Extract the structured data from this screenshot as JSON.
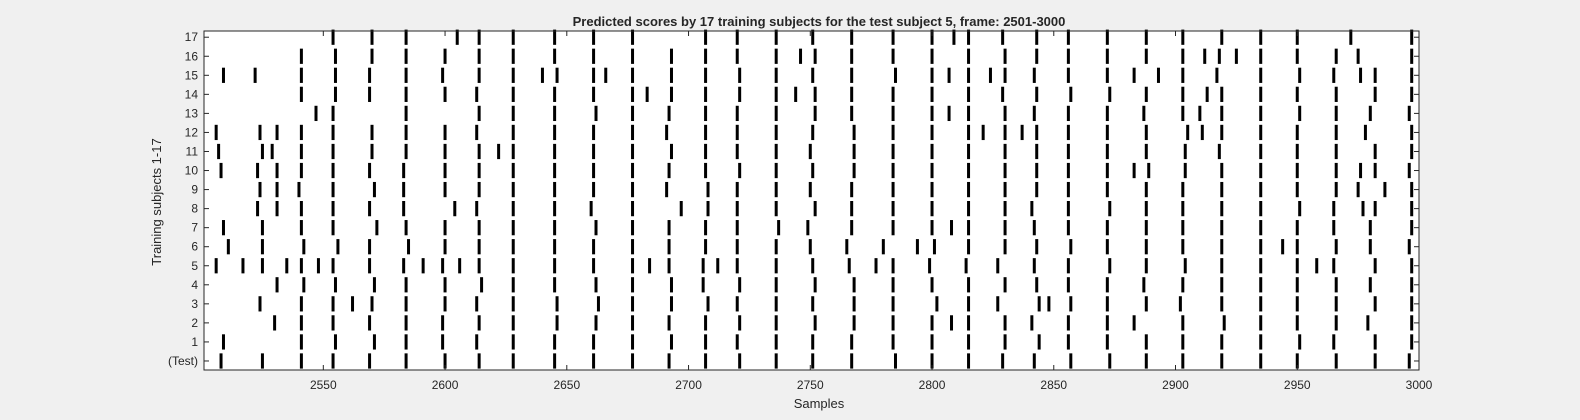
{
  "chart_data": {
    "type": "raster",
    "title": "Predicted scores by 17 training subjects for the test subject 5, frame: 2501-3000",
    "xlabel": "Samples",
    "ylabel": "Training subjects 1-17",
    "xlim": [
      2501,
      3000
    ],
    "xticks": [
      2550,
      2600,
      2650,
      2700,
      2750,
      2800,
      2850,
      2900,
      2950,
      3000
    ],
    "ytick_labels": [
      "(Test)",
      "1",
      "2",
      "3",
      "4",
      "5",
      "6",
      "7",
      "8",
      "9",
      "10",
      "11",
      "12",
      "13",
      "14",
      "15",
      "16",
      "17"
    ],
    "rows": [
      {
        "label": "(Test)",
        "events": [
          2508,
          2525,
          2541,
          2554,
          2569,
          2584,
          2600,
          2614,
          2628,
          2645,
          2661,
          2677,
          2692,
          2707,
          2721,
          2736,
          2751,
          2767,
          2785,
          2800,
          2815,
          2829,
          2842,
          2857,
          2873,
          2888,
          2903,
          2919,
          2935,
          2950,
          2966,
          2982,
          2996
        ]
      },
      {
        "label": "1",
        "events": [
          2509,
          2541,
          2555,
          2571,
          2584,
          2599,
          2613,
          2628,
          2645,
          2661,
          2677,
          2693,
          2707,
          2720,
          2736,
          2751,
          2767,
          2784,
          2800,
          2815,
          2830,
          2844,
          2856,
          2872,
          2888,
          2903,
          2919,
          2935,
          2951,
          2965,
          2982,
          2997
        ]
      },
      {
        "label": "2",
        "events": [
          2530,
          2541,
          2554,
          2569,
          2584,
          2599,
          2614,
          2628,
          2646,
          2662,
          2677,
          2692,
          2707,
          2721,
          2736,
          2752,
          2768,
          2784,
          2800,
          2808,
          2815,
          2830,
          2841,
          2856,
          2872,
          2883,
          2903,
          2920,
          2935,
          2950,
          2966,
          2979,
          2997
        ]
      },
      {
        "label": "3",
        "events": [
          2524,
          2541,
          2554,
          2562,
          2570,
          2584,
          2600,
          2613,
          2628,
          2646,
          2663,
          2677,
          2693,
          2708,
          2720,
          2736,
          2751,
          2768,
          2784,
          2802,
          2815,
          2827,
          2844,
          2848,
          2857,
          2872,
          2888,
          2902,
          2919,
          2935,
          2950,
          2966,
          2982,
          2997
        ]
      },
      {
        "label": "4",
        "events": [
          2531,
          2542,
          2555,
          2571,
          2584,
          2600,
          2615,
          2628,
          2645,
          2662,
          2677,
          2693,
          2706,
          2721,
          2736,
          2752,
          2768,
          2784,
          2800,
          2815,
          2830,
          2843,
          2856,
          2872,
          2887,
          2903,
          2919,
          2935,
          2950,
          2966,
          2980,
          2997
        ]
      },
      {
        "label": "5",
        "events": [
          2506,
          2517,
          2525,
          2535,
          2541,
          2548,
          2554,
          2569,
          2583,
          2591,
          2599,
          2606,
          2614,
          2628,
          2645,
          2661,
          2677,
          2684,
          2692,
          2706,
          2712,
          2720,
          2736,
          2751,
          2766,
          2777,
          2784,
          2799,
          2814,
          2827,
          2842,
          2856,
          2873,
          2888,
          2904,
          2919,
          2935,
          2950,
          2958,
          2965,
          2982,
          2997
        ]
      },
      {
        "label": "6",
        "events": [
          2511,
          2525,
          2542,
          2556,
          2569,
          2585,
          2600,
          2614,
          2628,
          2645,
          2661,
          2677,
          2692,
          2707,
          2720,
          2736,
          2750,
          2765,
          2780,
          2794,
          2801,
          2815,
          2830,
          2843,
          2857,
          2872,
          2888,
          2903,
          2919,
          2935,
          2944,
          2950,
          2966,
          2980,
          2996
        ]
      },
      {
        "label": "7",
        "events": [
          2509,
          2525,
          2541,
          2554,
          2572,
          2584,
          2600,
          2614,
          2628,
          2645,
          2662,
          2677,
          2692,
          2707,
          2720,
          2737,
          2749,
          2767,
          2784,
          2800,
          2808,
          2815,
          2830,
          2842,
          2856,
          2872,
          2888,
          2903,
          2919,
          2935,
          2950,
          2965,
          2980,
          2997
        ]
      },
      {
        "label": "8",
        "events": [
          2523,
          2531,
          2541,
          2554,
          2569,
          2583,
          2604,
          2613,
          2628,
          2645,
          2660,
          2677,
          2697,
          2708,
          2720,
          2736,
          2752,
          2767,
          2784,
          2800,
          2815,
          2830,
          2841,
          2856,
          2873,
          2888,
          2903,
          2919,
          2935,
          2951,
          2965,
          2977,
          2982,
          2997
        ]
      },
      {
        "label": "9",
        "events": [
          2524,
          2531,
          2540,
          2554,
          2571,
          2583,
          2600,
          2614,
          2628,
          2645,
          2661,
          2677,
          2691,
          2708,
          2720,
          2736,
          2750,
          2767,
          2784,
          2800,
          2815,
          2830,
          2843,
          2856,
          2872,
          2888,
          2903,
          2919,
          2935,
          2950,
          2966,
          2975,
          2986,
          2997
        ]
      },
      {
        "label": "10",
        "events": [
          2508,
          2523,
          2531,
          2541,
          2554,
          2569,
          2583,
          2600,
          2614,
          2628,
          2645,
          2661,
          2677,
          2692,
          2707,
          2721,
          2736,
          2751,
          2768,
          2784,
          2800,
          2815,
          2830,
          2843,
          2856,
          2872,
          2883,
          2889,
          2904,
          2919,
          2935,
          2950,
          2966,
          2976,
          2982,
          2996
        ]
      },
      {
        "label": "11",
        "events": [
          2507,
          2525,
          2529,
          2541,
          2554,
          2570,
          2584,
          2600,
          2614,
          2622,
          2628,
          2645,
          2661,
          2677,
          2693,
          2707,
          2720,
          2736,
          2750,
          2768,
          2784,
          2800,
          2815,
          2830,
          2843,
          2856,
          2872,
          2888,
          2904,
          2918,
          2935,
          2950,
          2966,
          2982,
          2997
        ]
      },
      {
        "label": "12",
        "events": [
          2506,
          2524,
          2531,
          2541,
          2554,
          2570,
          2584,
          2600,
          2613,
          2628,
          2645,
          2661,
          2677,
          2691,
          2707,
          2720,
          2736,
          2751,
          2768,
          2784,
          2800,
          2815,
          2821,
          2830,
          2837,
          2843,
          2856,
          2872,
          2888,
          2905,
          2911,
          2919,
          2935,
          2950,
          2966,
          2978,
          2997
        ]
      },
      {
        "label": "13",
        "events": [
          2547,
          2554,
          2584,
          2614,
          2628,
          2645,
          2662,
          2677,
          2692,
          2707,
          2720,
          2736,
          2752,
          2767,
          2784,
          2800,
          2807,
          2815,
          2830,
          2842,
          2856,
          2872,
          2887,
          2903,
          2910,
          2919,
          2935,
          2951,
          2966,
          2980,
          2996
        ]
      },
      {
        "label": "14",
        "events": [
          2541,
          2555,
          2569,
          2584,
          2600,
          2613,
          2628,
          2645,
          2661,
          2677,
          2683,
          2693,
          2707,
          2721,
          2736,
          2744,
          2752,
          2767,
          2784,
          2800,
          2815,
          2829,
          2843,
          2857,
          2873,
          2888,
          2903,
          2913,
          2919,
          2935,
          2950,
          2966,
          2982,
          2997
        ]
      },
      {
        "label": "15",
        "events": [
          2509,
          2522,
          2541,
          2555,
          2569,
          2584,
          2599,
          2614,
          2628,
          2640,
          2646,
          2661,
          2666,
          2677,
          2693,
          2707,
          2721,
          2736,
          2751,
          2767,
          2785,
          2800,
          2807,
          2815,
          2824,
          2830,
          2842,
          2856,
          2872,
          2883,
          2893,
          2903,
          2917,
          2935,
          2951,
          2965,
          2976,
          2982,
          2997
        ]
      },
      {
        "label": "16",
        "events": [
          2541,
          2555,
          2570,
          2584,
          2600,
          2614,
          2628,
          2645,
          2661,
          2677,
          2693,
          2707,
          2720,
          2736,
          2746,
          2752,
          2767,
          2784,
          2800,
          2815,
          2830,
          2843,
          2856,
          2872,
          2888,
          2903,
          2912,
          2918,
          2925,
          2935,
          2950,
          2966,
          2975,
          2997
        ]
      },
      {
        "label": "17",
        "events": [
          2554,
          2570,
          2584,
          2605,
          2614,
          2628,
          2645,
          2661,
          2677,
          2707,
          2720,
          2736,
          2751,
          2767,
          2784,
          2800,
          2809,
          2815,
          2829,
          2843,
          2856,
          2872,
          2888,
          2903,
          2919,
          2935,
          2950,
          2972,
          2997
        ]
      }
    ],
    "grid": false,
    "colors": {
      "figure_background": "#f0f0f0",
      "axes_background": "#ffffff",
      "marks": "#000000",
      "axes": "#262626"
    }
  }
}
